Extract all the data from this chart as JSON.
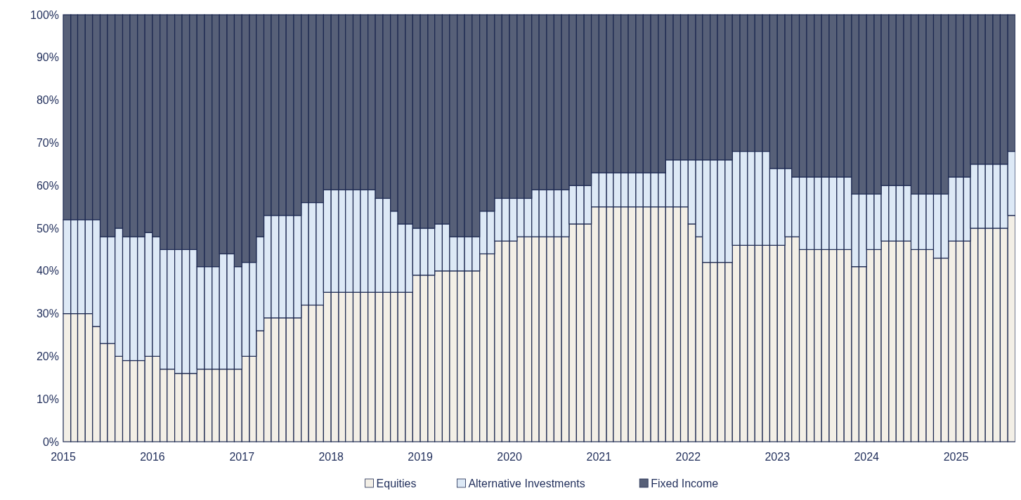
{
  "chart_data": {
    "type": "bar",
    "stacked": true,
    "x": [
      "2015-01",
      "2015-02",
      "2015-03",
      "2015-04",
      "2015-05",
      "2015-06",
      "2015-07",
      "2015-08",
      "2015-09",
      "2015-10",
      "2015-11",
      "2015-12",
      "2016-01",
      "2016-02",
      "2016-03",
      "2016-04",
      "2016-05",
      "2016-06",
      "2016-07",
      "2016-08",
      "2016-09",
      "2016-10",
      "2016-11",
      "2016-12",
      "2017-01",
      "2017-02",
      "2017-03",
      "2017-04",
      "2017-05",
      "2017-06",
      "2017-07",
      "2017-08",
      "2017-09",
      "2017-10",
      "2017-11",
      "2017-12",
      "2018-01",
      "2018-02",
      "2018-03",
      "2018-04",
      "2018-05",
      "2018-06",
      "2018-07",
      "2018-08",
      "2018-09",
      "2018-10",
      "2018-11",
      "2018-12",
      "2019-01",
      "2019-02",
      "2019-03",
      "2019-04",
      "2019-05",
      "2019-06",
      "2019-07",
      "2019-08",
      "2019-09",
      "2019-10",
      "2019-11",
      "2019-12",
      "2020-01",
      "2020-02",
      "2020-03",
      "2020-04",
      "2020-05",
      "2020-06",
      "2020-07",
      "2020-08",
      "2020-09",
      "2020-10",
      "2020-11",
      "2020-12",
      "2021-01",
      "2021-02",
      "2021-03",
      "2021-04",
      "2021-05",
      "2021-06",
      "2021-07",
      "2021-08",
      "2021-09",
      "2021-10",
      "2021-11",
      "2021-12",
      "2022-01",
      "2022-02",
      "2022-03",
      "2022-04",
      "2022-05",
      "2022-06",
      "2022-07",
      "2022-08",
      "2022-09",
      "2022-10",
      "2022-11",
      "2022-12",
      "2023-01",
      "2023-02",
      "2023-03",
      "2023-04",
      "2023-05",
      "2023-06",
      "2023-07",
      "2023-08",
      "2023-09",
      "2023-10",
      "2023-11",
      "2023-12",
      "2024-01",
      "2024-02",
      "2024-03",
      "2024-04",
      "2024-05",
      "2024-06",
      "2024-07",
      "2024-08",
      "2024-09",
      "2024-10",
      "2024-11",
      "2024-12",
      "2025-01",
      "2025-02",
      "2025-03",
      "2025-04",
      "2025-05",
      "2025-06",
      "2025-07",
      "2025-08"
    ],
    "series": [
      {
        "name": "Equities",
        "color": "#f3efe6",
        "values": [
          30,
          30,
          30,
          30,
          27,
          23,
          23,
          20,
          19,
          19,
          19,
          20,
          20,
          17,
          17,
          16,
          16,
          16,
          17,
          17,
          17,
          17,
          17,
          17,
          20,
          20,
          26,
          29,
          29,
          29,
          29,
          29,
          32,
          32,
          32,
          35,
          35,
          35,
          35,
          35,
          35,
          35,
          35,
          35,
          35,
          35,
          35,
          39,
          39,
          39,
          40,
          40,
          40,
          40,
          40,
          40,
          44,
          44,
          47,
          47,
          47,
          48,
          48,
          48,
          48,
          48,
          48,
          48,
          51,
          51,
          51,
          55,
          55,
          55,
          55,
          55,
          55,
          55,
          55,
          55,
          55,
          55,
          55,
          55,
          51,
          48,
          42,
          42,
          42,
          42,
          46,
          46,
          46,
          46,
          46,
          46,
          46,
          48,
          48,
          45,
          45,
          45,
          45,
          45,
          45,
          45,
          41,
          41,
          45,
          45,
          47,
          47,
          47,
          47,
          45,
          45,
          45,
          43,
          43,
          47,
          47,
          47,
          50,
          50,
          50,
          50,
          50,
          53
        ]
      },
      {
        "name": "Alternative Investments",
        "color": "#dde9f6",
        "values": [
          22,
          22,
          22,
          22,
          25,
          25,
          25,
          30,
          29,
          29,
          29,
          29,
          28,
          28,
          28,
          29,
          29,
          29,
          24,
          24,
          24,
          27,
          27,
          24,
          22,
          22,
          22,
          24,
          24,
          24,
          24,
          24,
          24,
          24,
          24,
          24,
          24,
          24,
          24,
          24,
          24,
          24,
          22,
          22,
          19,
          16,
          16,
          11,
          11,
          11,
          11,
          11,
          8,
          8,
          8,
          8,
          10,
          10,
          10,
          10,
          10,
          9,
          9,
          11,
          11,
          11,
          11,
          11,
          9,
          9,
          9,
          8,
          8,
          8,
          8,
          8,
          8,
          8,
          8,
          8,
          8,
          11,
          11,
          11,
          15,
          18,
          24,
          24,
          24,
          24,
          22,
          22,
          22,
          22,
          22,
          18,
          18,
          16,
          14,
          17,
          17,
          17,
          17,
          17,
          17,
          17,
          17,
          17,
          13,
          13,
          13,
          13,
          13,
          13,
          13,
          13,
          13,
          15,
          15,
          15,
          15,
          15,
          15,
          15,
          15,
          15,
          15,
          15
        ]
      },
      {
        "name": "Fixed Income",
        "color": "#576078",
        "values": [
          48,
          48,
          48,
          48,
          48,
          52,
          52,
          50,
          52,
          52,
          52,
          51,
          52,
          55,
          55,
          55,
          55,
          55,
          59,
          59,
          59,
          56,
          56,
          59,
          58,
          58,
          52,
          47,
          47,
          47,
          47,
          47,
          44,
          44,
          44,
          41,
          41,
          41,
          41,
          41,
          41,
          41,
          43,
          43,
          46,
          49,
          49,
          50,
          50,
          50,
          49,
          49,
          52,
          52,
          52,
          52,
          46,
          46,
          43,
          43,
          43,
          43,
          43,
          41,
          41,
          41,
          41,
          41,
          40,
          40,
          40,
          37,
          37,
          37,
          37,
          37,
          37,
          37,
          37,
          37,
          37,
          34,
          34,
          34,
          34,
          34,
          34,
          34,
          34,
          34,
          32,
          32,
          32,
          32,
          32,
          36,
          36,
          36,
          38,
          38,
          38,
          38,
          38,
          38,
          38,
          38,
          42,
          42,
          42,
          42,
          40,
          40,
          40,
          40,
          42,
          42,
          42,
          42,
          42,
          38,
          38,
          38,
          35,
          35,
          35,
          35,
          35,
          32
        ]
      }
    ],
    "xlim": [
      "2015-01",
      "2025-09"
    ],
    "xticks": [
      "2015",
      "2016",
      "2017",
      "2018",
      "2019",
      "2020",
      "2021",
      "2022",
      "2023",
      "2024",
      "2025"
    ],
    "ylim": [
      0,
      100
    ],
    "yticks": [
      {
        "value": 0,
        "label": "0%"
      },
      {
        "value": 10,
        "label": "10%"
      },
      {
        "value": 20,
        "label": "20%"
      },
      {
        "value": 30,
        "label": "30%"
      },
      {
        "value": 40,
        "label": "40%"
      },
      {
        "value": 50,
        "label": "50%"
      },
      {
        "value": 60,
        "label": "60%"
      },
      {
        "value": 70,
        "label": "70%"
      },
      {
        "value": 80,
        "label": "80%"
      },
      {
        "value": 90,
        "label": "90%"
      },
      {
        "value": 100,
        "label": "100%"
      }
    ],
    "legend": "bottom"
  }
}
